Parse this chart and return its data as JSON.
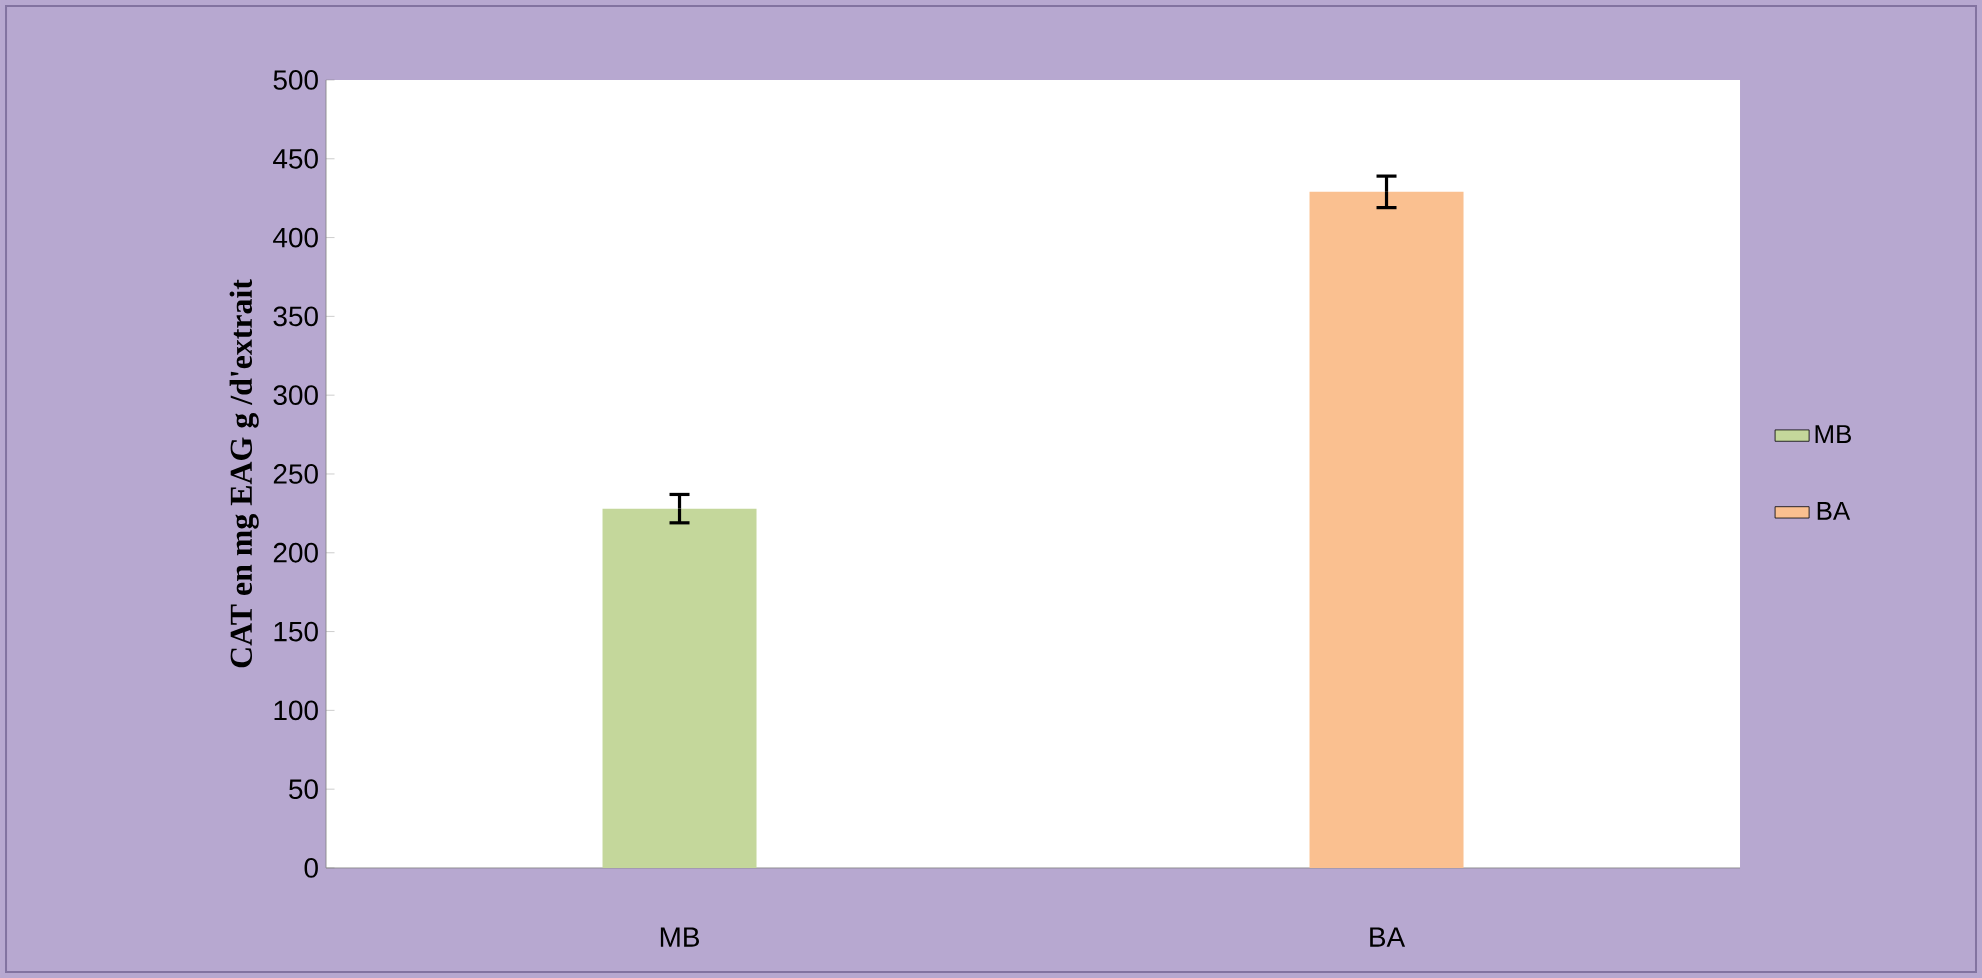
{
  "chart_data": {
    "type": "bar",
    "ylabel": "CAT en mg EAG g /d'extrait",
    "categories": [
      "MB",
      "BA"
    ],
    "series": [
      {
        "name": "MB",
        "color": "#c4d79b",
        "values": [
          228,
          null
        ],
        "errors": [
          9,
          null
        ]
      },
      {
        "name": "BA",
        "color": "#fac090",
        "values": [
          null,
          429
        ],
        "errors": [
          null,
          10
        ]
      }
    ],
    "ylim": [
      0,
      500
    ],
    "yticks": [
      0,
      50,
      100,
      150,
      200,
      250,
      300,
      350,
      400,
      450,
      500
    ],
    "legend": "right",
    "grid": false
  }
}
